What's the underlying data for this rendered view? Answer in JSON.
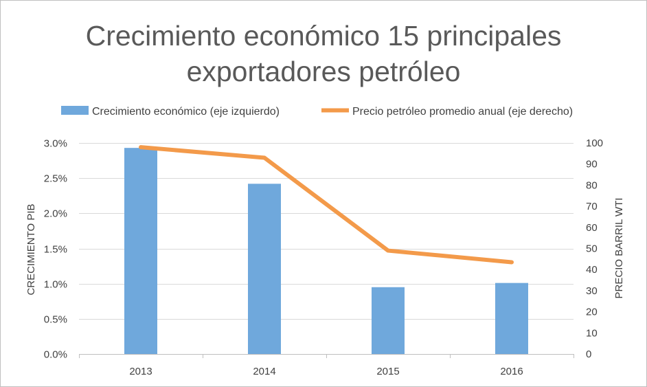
{
  "chart_data": {
    "type": "bar+line",
    "title": "Crecimiento económico 15 principales exportadores petróleo",
    "title_lines": [
      "Crecimiento económico 15 principales",
      "exportadores petróleo"
    ],
    "categories": [
      "2013",
      "2014",
      "2015",
      "2016"
    ],
    "series": [
      {
        "name": "Crecimiento económico (eje izquierdo)",
        "type": "bar",
        "axis": "left",
        "color": "#6fa8dc",
        "values": [
          2.93,
          2.42,
          0.95,
          1.01
        ]
      },
      {
        "name": "Precio petróleo promedio anual (eje derecho)",
        "type": "line",
        "axis": "right",
        "color": "#f39a4a",
        "values": [
          98,
          93,
          49,
          43.5
        ]
      }
    ],
    "y_left": {
      "label": "CRECIMIENTO PIB",
      "min": 0,
      "max": 0.03,
      "ticks": [
        "0.0%",
        "0.5%",
        "1.0%",
        "1.5%",
        "2.0%",
        "2.5%",
        "3.0%"
      ],
      "tick_values": [
        0,
        0.5,
        1.0,
        1.5,
        2.0,
        2.5,
        3.0
      ]
    },
    "y_right": {
      "label": "PRECIO BARRIL WTI",
      "min": 0,
      "max": 100,
      "ticks": [
        "0",
        "10",
        "20",
        "30",
        "40",
        "50",
        "60",
        "70",
        "80",
        "90",
        "100"
      ],
      "tick_values": [
        0,
        10,
        20,
        30,
        40,
        50,
        60,
        70,
        80,
        90,
        100
      ]
    },
    "grid": true,
    "legend_position": "top"
  }
}
